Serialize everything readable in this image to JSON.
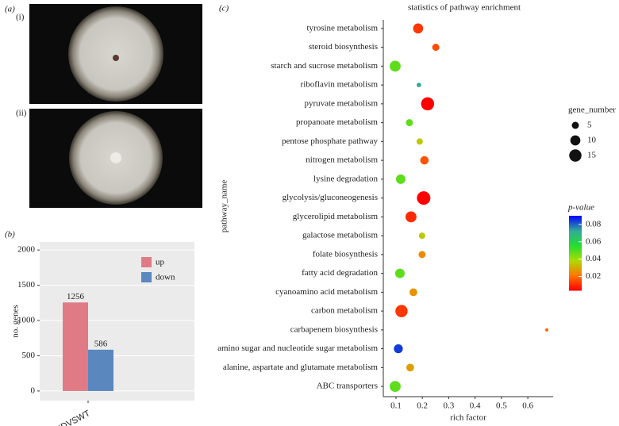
{
  "figure": {
    "panel_label": "(a)",
    "image_labels": [
      "(i)",
      "(ii)"
    ]
  },
  "chart_data": [
    {
      "type": "bar",
      "panel_label": "(b)",
      "ylabel": "no. genes",
      "categories": [
        "KDVSWT"
      ],
      "series": [
        {
          "name": "up",
          "color": "#e07b85",
          "values": [
            1256
          ]
        },
        {
          "name": "down",
          "color": "#5b87bf",
          "values": [
            586
          ]
        }
      ],
      "ylim": [
        -136,
        2114
      ],
      "yticks": [
        0,
        500,
        1000,
        1500,
        2000
      ],
      "grid": true
    },
    {
      "type": "bubble",
      "panel_label": "(c)",
      "title": "statistics of pathway enrichment",
      "xlabel": "rich factor",
      "ylabel": "pathway_name",
      "categories": [
        "tyrosine metabolism",
        "steroid biosynthesis",
        "starch and sucrose metabolism",
        "riboflavin metabolism",
        "pyruvate metabolism",
        "propanoate metabolism",
        "pentose phosphate pathway",
        "nitrogen metabolism",
        "lysine degradation",
        "glycolysis/gluconeogenesis",
        "glycerolipid metabolism",
        "galactose metabolism",
        "folate biosynthesis",
        "fatty acid degradation",
        "cyanoamino acid metabolism",
        "carbon metabolism",
        "carbapenem biosynthesis",
        "amino sugar and nucleotide sugar metabolism",
        "alanine, aspartate and glutamate metabolism",
        "ABC transporters"
      ],
      "values": [
        0.184,
        0.251,
        0.097,
        0.187,
        0.22,
        0.151,
        0.19,
        0.208,
        0.118,
        0.205,
        0.157,
        0.199,
        0.199,
        0.115,
        0.166,
        0.121,
        0.672,
        0.109,
        0.154,
        0.097
      ],
      "sizes": [
        10,
        5,
        12,
        2,
        17,
        5,
        4,
        7,
        9,
        18,
        12,
        4,
        5,
        9,
        6,
        15,
        1,
        8,
        6,
        12
      ],
      "pvalues": [
        0.012,
        0.015,
        0.048,
        0.072,
        0.004,
        0.048,
        0.035,
        0.016,
        0.048,
        0.004,
        0.01,
        0.035,
        0.024,
        0.048,
        0.026,
        0.012,
        0.018,
        0.084,
        0.028,
        0.048
      ],
      "xlim": [
        0.052,
        0.696
      ],
      "xticks": [
        0.1,
        0.2,
        0.3,
        0.4,
        0.5,
        0.6
      ],
      "size_legend_title": "gene_number",
      "size_legend_values": [
        5,
        10,
        15
      ],
      "color_legend_title": "p-value",
      "colorlim": [
        0.004,
        0.09
      ],
      "colorticks": [
        0.02,
        0.04,
        0.06,
        0.08
      ],
      "colorscale": [
        "#ff0000",
        "#ff7700",
        "#aadd00",
        "#22dd33",
        "#33aa99",
        "#0000ff"
      ]
    }
  ]
}
